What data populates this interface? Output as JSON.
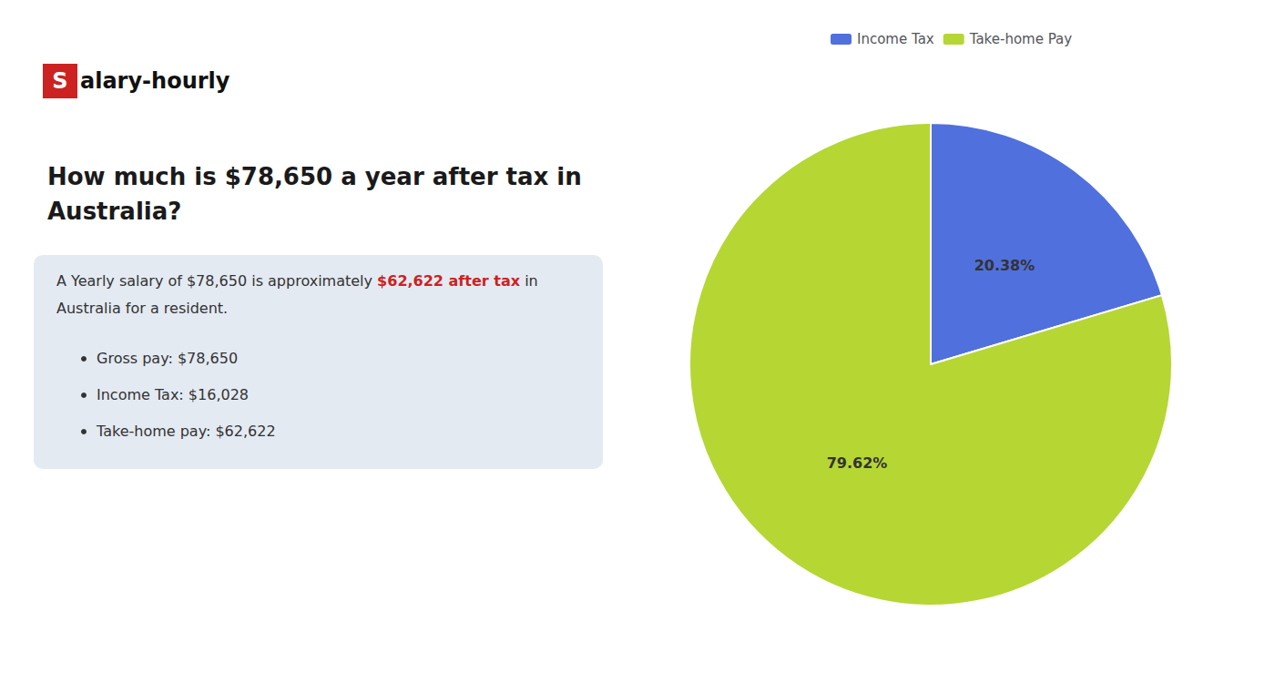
{
  "chart_data": {
    "type": "pie",
    "title": "How much is $78,650 a year after tax in\nAustralia?",
    "categories": [
      "Income Tax",
      "Take-home Pay"
    ],
    "values": [
      20.38,
      79.62
    ],
    "value_labels": [
      "20.38%",
      "79.62%"
    ],
    "data_labels": true,
    "legend": "top",
    "annotations": [
      {
        "text": "S",
        "color": "#cc2222"
      },
      {
        "text": "alary-hourly"
      },
      {
        "text": "A Yearly salary of $78,650 is approximately "
      },
      {
        "text": "$62,622 after tax",
        "color": "#cc2222"
      },
      {
        "text": " in"
      },
      {
        "text": "Australia for a resident."
      },
      {
        "text": "Gross pay: $78,650"
      },
      {
        "text": "Income Tax: $16,028"
      },
      {
        "text": "Take-home pay: $62,622"
      }
    ]
  }
}
